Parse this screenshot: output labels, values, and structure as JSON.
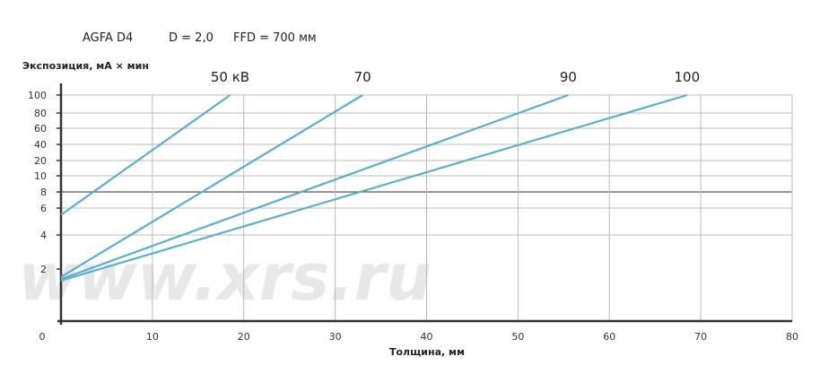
{
  "header": {
    "film": "AGFA D4",
    "density": "D = 2,0",
    "ffd": "FFD = 700 мм"
  },
  "watermark": "www.xrs.ru",
  "chart_data": {
    "type": "line",
    "title": "",
    "xlabel": "Толщина, мм",
    "ylabel": "Экспозиция, мА × мин",
    "xlim": [
      0,
      80
    ],
    "x_ticks": [
      "0",
      "10",
      "20",
      "30",
      "40",
      "50",
      "60",
      "70",
      "80"
    ],
    "y_ticks": [
      "100",
      "80",
      "60",
      "40",
      "20",
      "10",
      "8",
      "6",
      "4",
      "2"
    ],
    "y_tick_values": [
      100,
      80,
      60,
      40,
      20,
      10,
      8,
      6,
      4,
      2
    ],
    "grid": true,
    "line_color": "#5aaed0",
    "series": [
      {
        "name": "50 кВ",
        "x": [
          0,
          18.5
        ],
        "y": [
          5.5,
          100
        ]
      },
      {
        "name": "70",
        "x": [
          0,
          33
        ],
        "y": [
          1.45,
          100
        ]
      },
      {
        "name": "90",
        "x": [
          0,
          55.5
        ],
        "y": [
          1.3,
          100
        ]
      },
      {
        "name": "100",
        "x": [
          0,
          68.5
        ],
        "y": [
          1.2,
          100
        ]
      }
    ]
  }
}
